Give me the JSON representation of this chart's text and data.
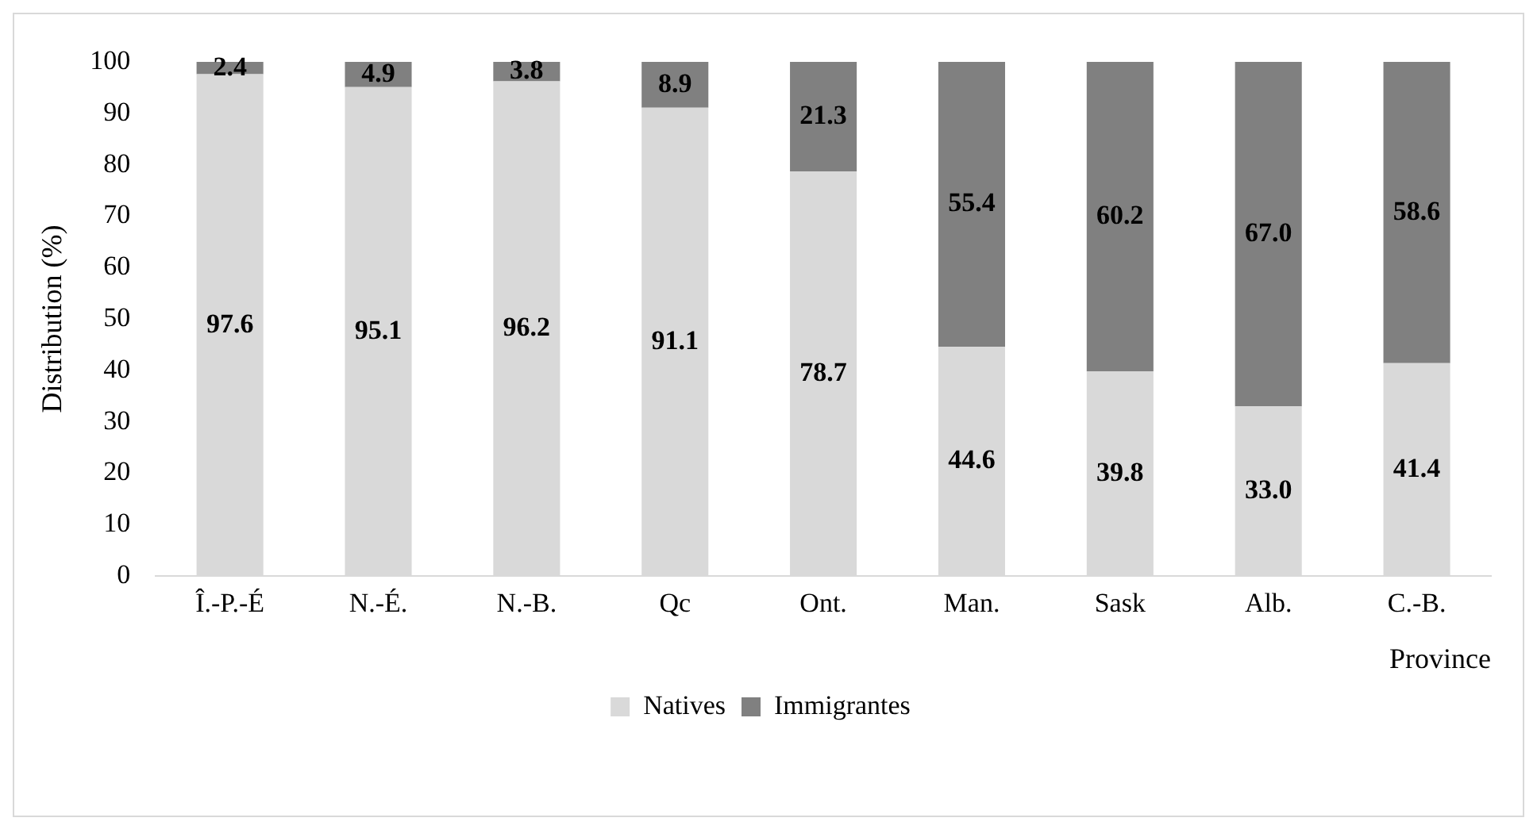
{
  "chart_data": {
    "type": "bar",
    "stacked": true,
    "xlabel": "Province",
    "ylabel": "Distribution (%)",
    "categories": [
      "Î.-P.-É",
      "N.-É.",
      "N.-B.",
      "Qc",
      "Ont.",
      "Man.",
      "Sask",
      "Alb.",
      "C.-B."
    ],
    "series": [
      {
        "name": "Natives",
        "color": "#d9d9d9",
        "values": [
          97.6,
          95.1,
          96.2,
          91.1,
          78.7,
          44.6,
          39.8,
          33.0,
          41.4
        ],
        "value_labels": [
          "97.6",
          "95.1",
          "96.2",
          "91.1",
          "78.7",
          "44.6",
          "39.8",
          "33.0",
          "41.4"
        ]
      },
      {
        "name": "Immigrantes",
        "color": "#808080",
        "values": [
          2.4,
          4.9,
          3.8,
          8.9,
          21.3,
          55.4,
          60.2,
          67.0,
          58.6
        ],
        "value_labels": [
          "2.4",
          "4.9",
          "3.8",
          "8.9",
          "21.3",
          "55.4",
          "60.2",
          "67.0",
          "58.6"
        ]
      }
    ],
    "ylim": [
      0,
      100
    ],
    "yticks": [
      0,
      10,
      20,
      30,
      40,
      50,
      60,
      70,
      80,
      90,
      100
    ],
    "grid": false,
    "legend": "bottom"
  }
}
